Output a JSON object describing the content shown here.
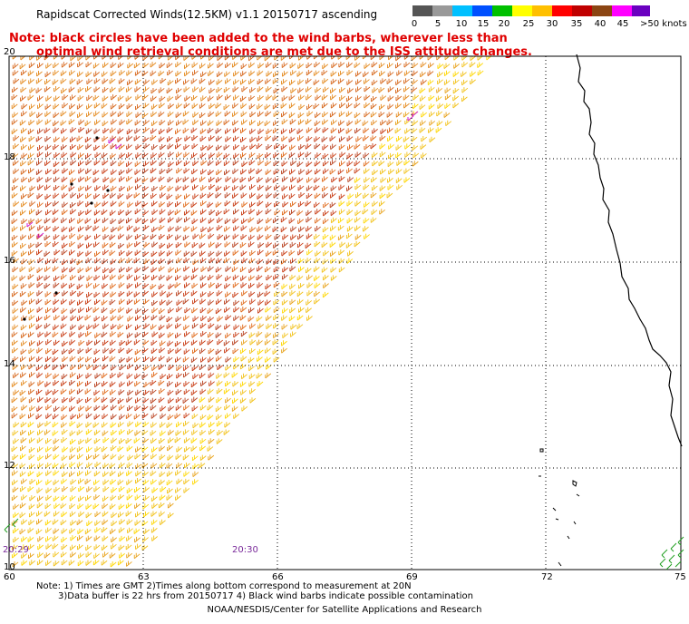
{
  "header": {
    "title": "Rapidscat Corrected Winds(12.5KM) v1.1 20150717 ascending",
    "note_line1": "Note: black circles have been added to the wind barbs, wherever less than",
    "note_line2": "optimal wind retrieval conditions are met due to the ISS attitude changes."
  },
  "colorbar": {
    "labels": [
      "0",
      "5",
      "10",
      "15",
      "20",
      "25",
      "30",
      "35",
      "40",
      "45",
      ">50 knots"
    ],
    "colors": [
      "#555555",
      "#888888",
      "#00a0ff",
      "#0060ff",
      "#00c000",
      "#ffff00",
      "#ffc000",
      "#ff0000",
      "#c00000",
      "#8b4513",
      "#ff00ff",
      "#6a00c0"
    ]
  },
  "map": {
    "lat_labels": [
      "20",
      "18",
      "16",
      "14",
      "12",
      "10"
    ],
    "lon_labels": [
      "60",
      "63",
      "66",
      "69",
      "72",
      "75"
    ],
    "time_labels": [
      "20:29",
      "20:30"
    ]
  },
  "footer": {
    "line1": "Note: 1) Times are GMT 2)Times along bottom correspond to measurement at 20N",
    "line2": "3)Data buffer is 22 hrs from 20150717 4) Black wind barbs indicate possible contamination",
    "credit": "NOAA/NESDIS/Center for Satellite Applications and Research"
  }
}
